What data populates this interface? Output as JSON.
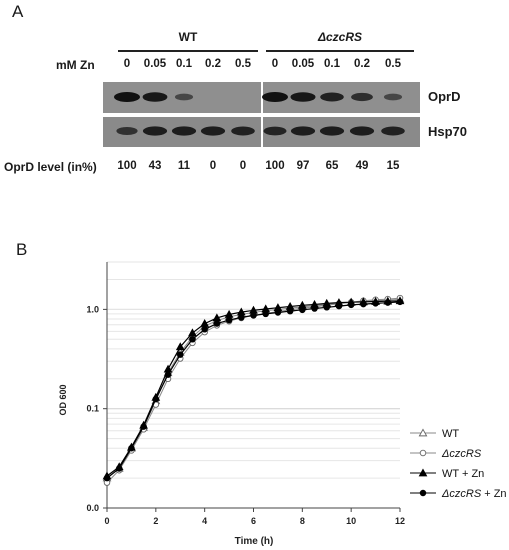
{
  "panel_a": {
    "letter": "A",
    "groups": [
      {
        "label": "WT",
        "italic": false
      },
      {
        "label": "ΔczcRS",
        "italic": true
      }
    ],
    "zn_axis_label": "mM Zn",
    "lanes": [
      "0",
      "0.05",
      "0.1",
      "0.2",
      "0.5",
      "0",
      "0.05",
      "0.1",
      "0.2",
      "0.5"
    ],
    "blot_rows": [
      {
        "label": "OprD",
        "intensities": [
          1.0,
          0.9,
          0.35,
          0.0,
          0.0,
          1.0,
          0.92,
          0.8,
          0.65,
          0.35
        ]
      },
      {
        "label": "Hsp70",
        "intensities": [
          0.6,
          0.85,
          0.85,
          0.85,
          0.8,
          0.75,
          0.85,
          0.85,
          0.85,
          0.8
        ]
      }
    ],
    "level_label": "OprD level (in%)",
    "levels": [
      "100",
      "43",
      "11",
      "0",
      "0",
      "100",
      "97",
      "65",
      "49",
      "15"
    ]
  },
  "panel_b": {
    "letter": "B"
  },
  "chart_data": {
    "type": "line",
    "title": "",
    "xlabel": "Time (h)",
    "ylabel": "OD 600",
    "xlim": [
      0,
      12
    ],
    "ylim": [
      0.01,
      3.0
    ],
    "y_scale": "log",
    "x_ticks": [
      0,
      2,
      4,
      6,
      8,
      10,
      12
    ],
    "y_ticks": [
      0.01,
      0.1,
      1.0
    ],
    "y_tick_labels": [
      "0.0",
      "0.1",
      "1.0"
    ],
    "grid": "horizontal",
    "legend_position": "right",
    "x": [
      0,
      0.5,
      1,
      1.5,
      2,
      2.5,
      3,
      3.5,
      4,
      4.5,
      5,
      5.5,
      6,
      6.5,
      7,
      7.5,
      8,
      8.5,
      9,
      9.5,
      10,
      10.5,
      11,
      11.5,
      12
    ],
    "series": [
      {
        "name": "WT",
        "marker": "open-triangle",
        "values": [
          0.02,
          0.025,
          0.04,
          0.065,
          0.12,
          0.23,
          0.37,
          0.53,
          0.68,
          0.77,
          0.84,
          0.89,
          0.93,
          0.97,
          1.0,
          1.03,
          1.06,
          1.09,
          1.12,
          1.15,
          1.18,
          1.2,
          1.22,
          1.24,
          1.26
        ]
      },
      {
        "name": "ΔczcRS",
        "italic_part": "czcRS",
        "marker": "open-circle",
        "values": [
          0.018,
          0.024,
          0.038,
          0.062,
          0.11,
          0.2,
          0.32,
          0.46,
          0.59,
          0.69,
          0.76,
          0.82,
          0.87,
          0.91,
          0.95,
          0.99,
          1.03,
          1.06,
          1.1,
          1.14,
          1.18,
          1.22,
          1.25,
          1.27,
          1.3
        ]
      },
      {
        "name": "WT + Zn",
        "marker": "filled-triangle",
        "values": [
          0.021,
          0.026,
          0.041,
          0.068,
          0.13,
          0.25,
          0.42,
          0.58,
          0.72,
          0.82,
          0.89,
          0.94,
          0.98,
          1.01,
          1.04,
          1.07,
          1.1,
          1.12,
          1.15,
          1.17,
          1.18,
          1.19,
          1.2,
          1.21,
          1.22
        ]
      },
      {
        "name": "ΔczcRS + Zn",
        "italic_part": "czcRS",
        "marker": "filled-circle",
        "values": [
          0.02,
          0.025,
          0.04,
          0.066,
          0.125,
          0.22,
          0.35,
          0.5,
          0.63,
          0.72,
          0.78,
          0.83,
          0.87,
          0.9,
          0.93,
          0.96,
          0.99,
          1.02,
          1.05,
          1.08,
          1.11,
          1.13,
          1.15,
          1.17,
          1.19
        ]
      }
    ]
  }
}
